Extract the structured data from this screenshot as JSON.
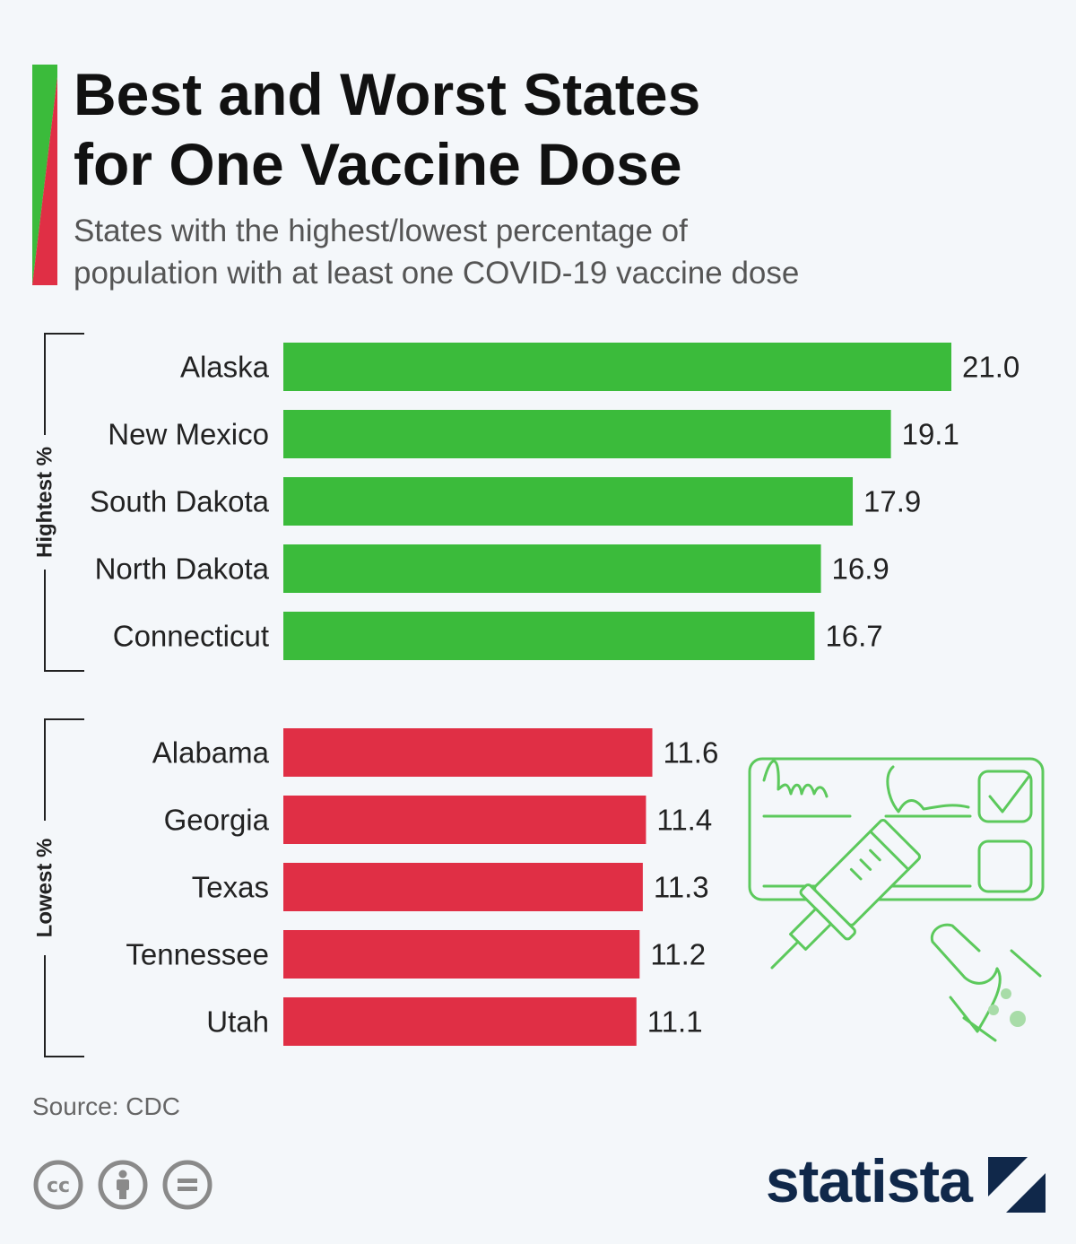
{
  "header": {
    "title_line1": "Best and Worst States",
    "title_line2": "for One Vaccine Dose",
    "subtitle_line1": "States with the highest/lowest percentage of",
    "subtitle_line2": "population with at least one COVID-19 vaccine dose"
  },
  "colors": {
    "highest": "#3bbb3b",
    "lowest": "#e02f45",
    "illustration": "#5cc95c"
  },
  "chart_data": {
    "type": "bar",
    "orientation": "horizontal",
    "groups": [
      {
        "name": "Hightest %",
        "color": "#3bbb3b",
        "categories": [
          "Alaska",
          "New Mexico",
          "South Dakota",
          "North Dakota",
          "Connecticut"
        ],
        "values": [
          21.0,
          19.1,
          17.9,
          16.9,
          16.7
        ]
      },
      {
        "name": "Lowest %",
        "color": "#e02f45",
        "categories": [
          "Alabama",
          "Georgia",
          "Texas",
          "Tennessee",
          "Utah"
        ],
        "values": [
          11.6,
          11.4,
          11.3,
          11.2,
          11.1
        ]
      }
    ],
    "xlim": [
      0,
      21.0
    ],
    "grid": false,
    "value_labels": true
  },
  "illustration": {
    "icon": "vaccination-card-syringe-icon"
  },
  "footer": {
    "source": "Source: CDC",
    "brand": "statista",
    "license_icons": [
      "cc-icon",
      "attribution-icon",
      "no-derivatives-icon"
    ]
  }
}
